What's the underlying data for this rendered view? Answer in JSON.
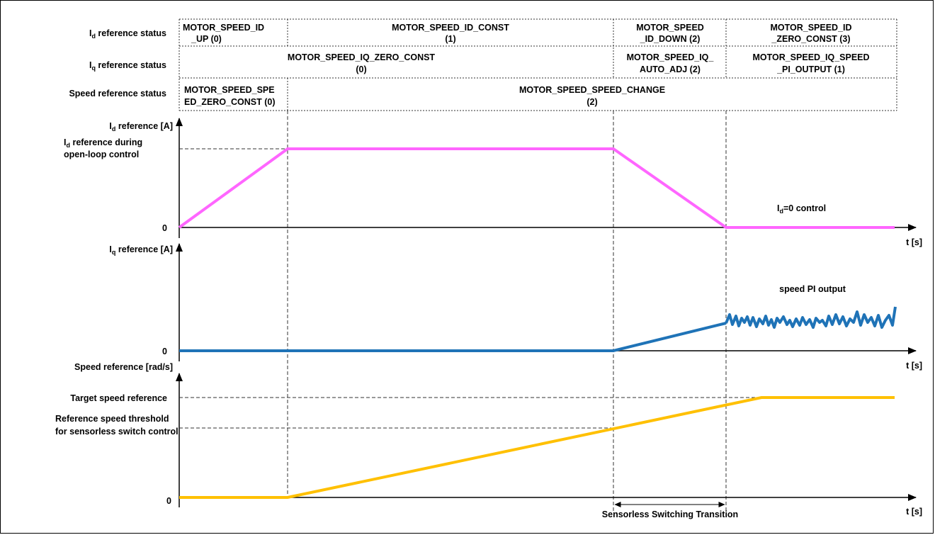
{
  "status_table": {
    "rows": [
      {
        "label": "I",
        "label_sub": "d",
        "label_rest": " reference status",
        "cells": [
          {
            "lines": [
              "MOTOR_SPEED_ID",
              "_UP (0)"
            ]
          },
          {
            "lines": [
              "MOTOR_SPEED_ID_CONST",
              "(1)"
            ]
          },
          {
            "lines": [
              "MOTOR_SPEED",
              "_ID_DOWN (2)"
            ]
          },
          {
            "lines": [
              "MOTOR_SPEED_ID",
              "_ZERO_CONST (3)"
            ]
          }
        ]
      },
      {
        "label": "I",
        "label_sub": "q",
        "label_rest": " reference status",
        "cells": [
          {
            "lines": [
              "MOTOR_SPEED_IQ_ZERO_CONST",
              "(0)"
            ]
          },
          {
            "lines": [
              "MOTOR_SPEED_IQ_",
              "AUTO_ADJ (2)"
            ]
          },
          {
            "lines": [
              "MOTOR_SPEED_IQ_SPEED",
              "_PI_OUTPUT (1)"
            ]
          }
        ]
      },
      {
        "label": "Speed reference status",
        "label_sub": "",
        "label_rest": "",
        "cells": [
          {
            "lines": [
              "MOTOR_SPEED_SPE",
              "ED_ZERO_CONST (0)"
            ]
          },
          {
            "lines": [
              "MOTOR_SPEED_SPEED_CHANGE",
              "(2)"
            ]
          }
        ]
      }
    ]
  },
  "panels": {
    "id": {
      "axis_label": {
        "pre": "I",
        "sub": "d",
        "post": " reference [A]"
      },
      "level_label_lines": [
        {
          "pre": "I",
          "sub": "d",
          "post": " reference during"
        },
        {
          "pre": "open-loop control",
          "sub": "",
          "post": ""
        }
      ],
      "zero_label": "0",
      "time_label": "t [s]",
      "annotation": {
        "pre": "I",
        "sub": "d",
        "post": "=0 control"
      },
      "color": "#ff66ff"
    },
    "iq": {
      "axis_label": {
        "pre": "I",
        "sub": "q",
        "post": " reference [A]"
      },
      "zero_label": "0",
      "time_label": "t [s]",
      "annotation": "speed PI output",
      "color": "#1f73b7"
    },
    "speed": {
      "axis_label": "Speed reference [rad/s]",
      "target_label": "Target speed reference",
      "threshold_label_lines": [
        "Reference speed threshold",
        "for sensorless switch control"
      ],
      "zero_label": "0",
      "time_label": "t [s]",
      "transition_label": "Sensorless Switching Transition",
      "color": "#ffc000"
    }
  }
}
